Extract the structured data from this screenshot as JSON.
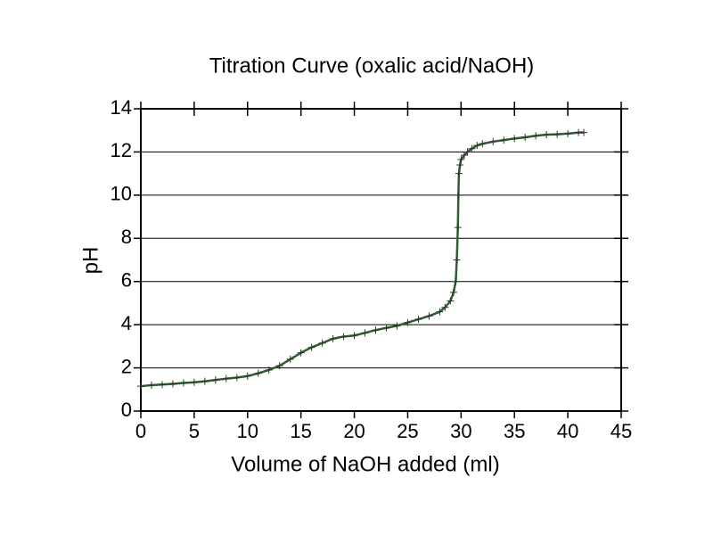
{
  "chart_data": {
    "type": "line",
    "title": "Titration Curve (oxalic acid/NaOH)",
    "x_label": "Volume of NaOH added (ml)",
    "y_label": "pH",
    "x": [
      0,
      1,
      2,
      3,
      4,
      5,
      6,
      7,
      8,
      9,
      10,
      11,
      12,
      13,
      14,
      15,
      16,
      17,
      18,
      19,
      20,
      21,
      22,
      23,
      24,
      25,
      26,
      27,
      28,
      28.5,
      29,
      29.3,
      29.5,
      29.6,
      29.7,
      29.75,
      29.8,
      29.9,
      30,
      30.3,
      30.6,
      31,
      31.5,
      32,
      33,
      34,
      35,
      36,
      37,
      38,
      39,
      40,
      41,
      41.5
    ],
    "series": [
      {
        "color": "#2f5f2f",
        "marker_color": "#333333",
        "values": [
          1.15,
          1.2,
          1.23,
          1.26,
          1.3,
          1.33,
          1.38,
          1.44,
          1.5,
          1.55,
          1.62,
          1.75,
          1.9,
          2.1,
          2.4,
          2.7,
          2.95,
          3.15,
          3.35,
          3.45,
          3.5,
          3.62,
          3.75,
          3.85,
          3.95,
          4.1,
          4.25,
          4.4,
          4.6,
          4.8,
          5.1,
          5.5,
          6.0,
          7.0,
          8.5,
          10.0,
          11.0,
          11.4,
          11.65,
          11.85,
          12.0,
          12.15,
          12.3,
          12.38,
          12.48,
          12.55,
          12.62,
          12.68,
          12.75,
          12.8,
          12.82,
          12.85,
          12.9,
          12.9
        ]
      }
    ],
    "xlim": [
      0,
      45
    ],
    "xticks": [
      0,
      5,
      10,
      15,
      20,
      25,
      30,
      35,
      40,
      45
    ],
    "ylim": [
      0,
      14
    ],
    "yticks": [
      0,
      2,
      4,
      6,
      8,
      10,
      12,
      14
    ],
    "grid": true
  }
}
